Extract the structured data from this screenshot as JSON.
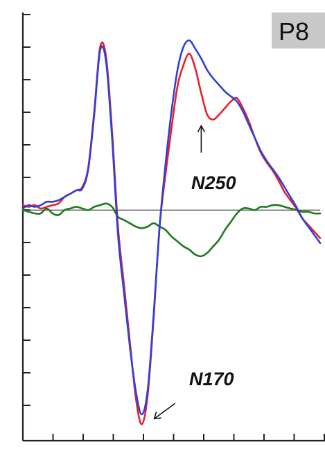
{
  "chart_data": {
    "type": "line",
    "title": "P8",
    "xlabel": "",
    "ylabel": "",
    "x_tick_count": 11,
    "y_tick_count": 13,
    "grid": false,
    "legend": "none",
    "zero_line": true,
    "x": [
      0,
      2,
      4,
      6,
      8,
      10,
      12,
      14,
      16,
      18,
      20,
      22,
      24,
      26,
      28,
      30,
      32,
      34,
      36,
      38,
      40,
      42,
      44,
      46,
      48,
      50,
      52,
      54,
      56,
      58,
      60,
      62,
      64,
      66,
      68,
      70,
      72,
      74,
      76,
      78,
      80,
      82,
      84,
      86,
      88,
      90,
      92,
      94,
      96,
      98,
      100
    ],
    "series": [
      {
        "color": "#e8202a",
        "values": [
          0.3,
          0.2,
          0.3,
          0.1,
          0.2,
          0.3,
          0.4,
          0.8,
          1.0,
          1.2,
          1.4,
          2.6,
          6.0,
          9.9,
          9.3,
          4.8,
          -1.0,
          -4.5,
          -8.0,
          -11.4,
          -13.0,
          -11.2,
          -6.5,
          -1.0,
          2.2,
          5.0,
          7.5,
          8.8,
          9.5,
          8.6,
          7.1,
          5.8,
          5.5,
          5.8,
          6.2,
          6.6,
          6.8,
          6.2,
          5.4,
          4.4,
          3.5,
          2.9,
          2.4,
          1.8,
          1.1,
          0.6,
          0.1,
          -0.5,
          -0.9,
          -1.3,
          -1.7
        ]
      },
      {
        "color": "#2f3fd8",
        "values": [
          0.1,
          0.3,
          0.2,
          0.3,
          0.5,
          0.5,
          0.6,
          0.8,
          1.0,
          1.2,
          1.3,
          2.5,
          5.8,
          9.7,
          9.0,
          4.4,
          -1.5,
          -5.0,
          -8.3,
          -11.0,
          -12.4,
          -10.9,
          -6.3,
          -1.0,
          2.8,
          6.0,
          8.5,
          9.9,
          10.3,
          9.8,
          9.2,
          8.5,
          8.0,
          7.6,
          7.2,
          6.9,
          6.6,
          6.0,
          5.2,
          4.4,
          3.6,
          3.0,
          2.5,
          2.0,
          1.4,
          0.8,
          0.2,
          -0.5,
          -1.0,
          -1.5,
          -2.0
        ]
      },
      {
        "color": "#1c7a1c",
        "values": [
          0.0,
          -0.1,
          -0.2,
          -0.2,
          0.1,
          -0.2,
          -0.3,
          0.0,
          0.1,
          0.2,
          0.1,
          0.0,
          0.2,
          0.3,
          0.4,
          0.2,
          -0.4,
          -0.6,
          -0.8,
          -1.0,
          -1.1,
          -1.0,
          -0.8,
          -1.0,
          -1.2,
          -1.6,
          -1.9,
          -2.2,
          -2.4,
          -2.7,
          -2.8,
          -2.6,
          -2.2,
          -1.8,
          -1.2,
          -0.7,
          -0.2,
          0.1,
          0.1,
          0.0,
          0.2,
          0.2,
          0.3,
          0.3,
          0.2,
          0.1,
          0.0,
          -0.1,
          -0.1,
          -0.2,
          -0.2
        ]
      }
    ],
    "ylim": [
      -14,
      12
    ],
    "xlim": [
      0,
      100
    ],
    "annotations": [
      {
        "label": "N250",
        "series_index": 0,
        "x": 60,
        "y": 5.5
      },
      {
        "label": "N170",
        "series_index": 0,
        "x": 40,
        "y": -13.0
      }
    ]
  }
}
